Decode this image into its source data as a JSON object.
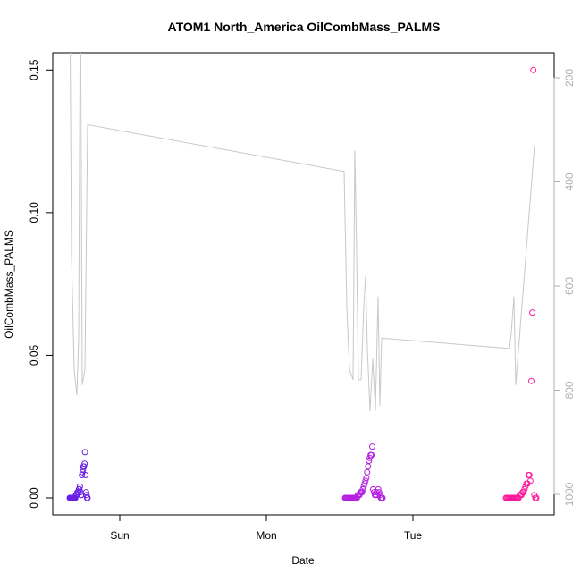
{
  "chart_data": {
    "type": "scatter",
    "title": "ATOM1 North_America OilCombMass_PALMS",
    "xlabel": "Date",
    "ylabel": "OilCombMass_PALMS",
    "x_ticks": [
      "Sun",
      "Mon",
      "Tue"
    ],
    "ylim": [
      0,
      0.155
    ],
    "y_ticks": [
      "0.00",
      "0.05",
      "0.10",
      "0.15"
    ],
    "y2_ticks": [
      "200",
      "400",
      "600",
      "800",
      "1000"
    ],
    "y2_axis_reversed": true,
    "grid": false,
    "colors": {
      "series": [
        "#6a1fe6",
        "#b51fe0",
        "#ff1a9c"
      ],
      "line": "#c8c8c8",
      "axis": "#000000",
      "axis_right": "#b0b0b0"
    },
    "series": [
      {
        "values": [
          0,
          0,
          0,
          0,
          0,
          0,
          0,
          0,
          0,
          0,
          0,
          0,
          0.001,
          0.001,
          0.001,
          0.002,
          0.002,
          0.002,
          0.003,
          0.003,
          0.004,
          0.002,
          0.001,
          0.001,
          0.008,
          0.009,
          0.01,
          0.011,
          0.011,
          0.012,
          0.016,
          0.008,
          0.002,
          0.001,
          0,
          0
        ]
      },
      {
        "values": [
          0,
          0,
          0,
          0,
          0,
          0,
          0,
          0,
          0,
          0,
          0,
          0,
          0,
          0,
          0,
          0.001,
          0.001,
          0.001,
          0.002,
          0.002,
          0.002,
          0.003,
          0.004,
          0.005,
          0.006,
          0.007,
          0.009,
          0.011,
          0.013,
          0.014,
          0.015,
          0.015,
          0.018,
          0.003,
          0.002,
          0.001,
          0.001,
          0.002,
          0.001,
          0.003,
          0.002,
          0.001,
          0,
          0,
          0
        ]
      },
      {
        "values": [
          0,
          0,
          0,
          0,
          0,
          0,
          0,
          0,
          0,
          0,
          0,
          0,
          0,
          0,
          0.001,
          0.001,
          0.001,
          0.002,
          0.002,
          0.003,
          0.004,
          0.005,
          0.005,
          0.008,
          0.008,
          0.006,
          0.041,
          0.065,
          0.15,
          0.001,
          0,
          0
        ]
      }
    ],
    "secondary_line": {
      "axis": "right",
      "reversed": true,
      "values": [
        0,
        540,
        760,
        810,
        700,
        0,
        790,
        760,
        290,
        380,
        640,
        760,
        780,
        340,
        540,
        780,
        780,
        640,
        580,
        720,
        840,
        740,
        840,
        620,
        830,
        700,
        720,
        690,
        620,
        790,
        330
      ]
    }
  }
}
